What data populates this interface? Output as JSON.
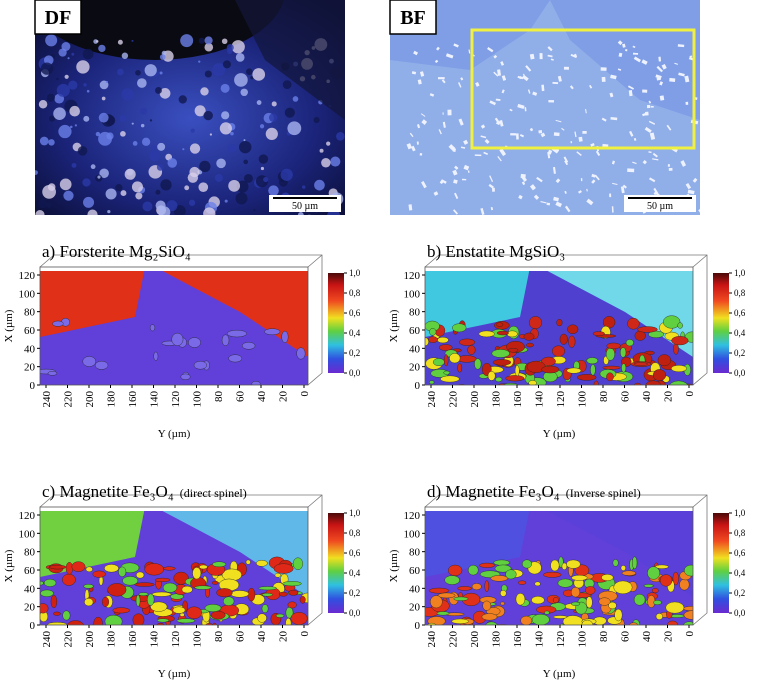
{
  "micrographs": [
    {
      "label": "DF",
      "scale_bar": "50 µm"
    },
    {
      "label": "BF",
      "scale_bar": "50 µm"
    }
  ],
  "maps": [
    {
      "title": "a) Forsterite Mg₂SiO₄"
    },
    {
      "title": "b) Enstatite MgSiO₃"
    },
    {
      "title": "c) Magnetite Fe₃O₄",
      "note": "(direct spinel)"
    },
    {
      "title": "d) Magnetite Fe₃O₄",
      "note": "(Inverse spinel)"
    }
  ],
  "axes": {
    "x_label": "X (µm)",
    "y_label": "Y (µm)",
    "x_ticks": [
      0,
      20,
      40,
      60,
      80,
      100,
      120
    ],
    "y_ticks": [
      240,
      220,
      200,
      180,
      160,
      140,
      120,
      100,
      80,
      60,
      40,
      20,
      0
    ],
    "colorbar_ticks": [
      {
        "value": 1.0,
        "label": "1,0"
      },
      {
        "value": 0.8,
        "label": "0,8"
      },
      {
        "value": 0.6,
        "label": "0,6"
      },
      {
        "value": 0.4,
        "label": "0,4"
      },
      {
        "value": 0.2,
        "label": "0,2"
      },
      {
        "value": 0.0,
        "label": "0,0"
      }
    ]
  }
}
